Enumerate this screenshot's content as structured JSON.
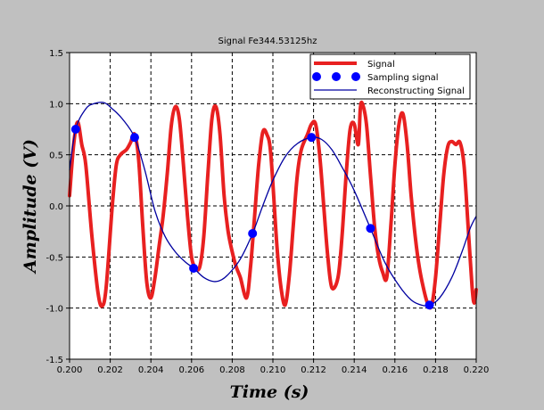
{
  "chart_data": {
    "type": "line",
    "title": "Signal Fe344.53125hz",
    "xlabel": "Time (s)",
    "ylabel": "Amplitude (V)",
    "xlim": [
      0.2,
      0.22
    ],
    "ylim": [
      -1.5,
      1.5
    ],
    "x_ticks": [
      "0.200",
      "0.202",
      "0.204",
      "0.206",
      "0.208",
      "0.210",
      "0.212",
      "0.214",
      "0.216",
      "0.218",
      "0.220"
    ],
    "y_ticks": [
      "1.5",
      "1.0",
      "0.5",
      "0.0",
      "-0.5",
      "-1.0",
      "-1.5"
    ],
    "grid": true,
    "legend_position": "top-right",
    "series": [
      {
        "name": "Signal",
        "style": "thick-line",
        "color": "#e82020",
        "points": [
          [
            0.2,
            0.1
          ],
          [
            0.2002,
            0.6
          ],
          [
            0.2004,
            0.82
          ],
          [
            0.2006,
            0.6
          ],
          [
            0.2008,
            0.4
          ],
          [
            0.2011,
            -0.3
          ],
          [
            0.2014,
            -0.85
          ],
          [
            0.2016,
            -0.98
          ],
          [
            0.2018,
            -0.8
          ],
          [
            0.2021,
            0.0
          ],
          [
            0.2023,
            0.4
          ],
          [
            0.2025,
            0.5
          ],
          [
            0.2028,
            0.55
          ],
          [
            0.203,
            0.62
          ],
          [
            0.2032,
            0.7
          ],
          [
            0.2034,
            0.45
          ],
          [
            0.2036,
            -0.2
          ],
          [
            0.2038,
            -0.75
          ],
          [
            0.204,
            -0.9
          ],
          [
            0.2042,
            -0.7
          ],
          [
            0.2044,
            -0.4
          ],
          [
            0.2046,
            -0.1
          ],
          [
            0.2048,
            0.3
          ],
          [
            0.205,
            0.78
          ],
          [
            0.2052,
            0.97
          ],
          [
            0.2054,
            0.85
          ],
          [
            0.2056,
            0.4
          ],
          [
            0.2058,
            -0.1
          ],
          [
            0.206,
            -0.5
          ],
          [
            0.2062,
            -0.6
          ],
          [
            0.2064,
            -0.6
          ],
          [
            0.2066,
            -0.3
          ],
          [
            0.2068,
            0.3
          ],
          [
            0.207,
            0.85
          ],
          [
            0.2072,
            0.97
          ],
          [
            0.2074,
            0.7
          ],
          [
            0.2076,
            0.1
          ],
          [
            0.2078,
            -0.25
          ],
          [
            0.208,
            -0.45
          ],
          [
            0.2082,
            -0.6
          ],
          [
            0.2084,
            -0.7
          ],
          [
            0.2087,
            -0.9
          ],
          [
            0.2089,
            -0.6
          ],
          [
            0.2091,
            -0.1
          ],
          [
            0.2093,
            0.4
          ],
          [
            0.2095,
            0.72
          ],
          [
            0.2097,
            0.7
          ],
          [
            0.2099,
            0.5
          ],
          [
            0.2102,
            -0.4
          ],
          [
            0.2104,
            -0.8
          ],
          [
            0.2106,
            -0.97
          ],
          [
            0.2108,
            -0.7
          ],
          [
            0.211,
            -0.2
          ],
          [
            0.2112,
            0.3
          ],
          [
            0.2114,
            0.55
          ],
          [
            0.2117,
            0.7
          ],
          [
            0.2119,
            0.8
          ],
          [
            0.2121,
            0.8
          ],
          [
            0.2123,
            0.5
          ],
          [
            0.2125,
            0.0
          ],
          [
            0.2127,
            -0.5
          ],
          [
            0.2129,
            -0.8
          ],
          [
            0.2132,
            -0.7
          ],
          [
            0.2134,
            -0.3
          ],
          [
            0.2136,
            0.3
          ],
          [
            0.2138,
            0.75
          ],
          [
            0.214,
            0.8
          ],
          [
            0.2142,
            0.6
          ],
          [
            0.2143,
            0.95
          ],
          [
            0.2144,
            1.0
          ],
          [
            0.2146,
            0.8
          ],
          [
            0.2148,
            0.3
          ],
          [
            0.215,
            -0.2
          ],
          [
            0.2152,
            -0.5
          ],
          [
            0.2154,
            -0.65
          ],
          [
            0.2156,
            -0.7
          ],
          [
            0.2158,
            -0.2
          ],
          [
            0.216,
            0.4
          ],
          [
            0.2162,
            0.8
          ],
          [
            0.2164,
            0.9
          ],
          [
            0.2166,
            0.6
          ],
          [
            0.2168,
            0.1
          ],
          [
            0.217,
            -0.3
          ],
          [
            0.2172,
            -0.6
          ],
          [
            0.2174,
            -0.8
          ],
          [
            0.2176,
            -0.95
          ],
          [
            0.2178,
            -0.98
          ],
          [
            0.218,
            -0.7
          ],
          [
            0.2182,
            -0.2
          ],
          [
            0.2184,
            0.3
          ],
          [
            0.2186,
            0.58
          ],
          [
            0.2188,
            0.63
          ],
          [
            0.219,
            0.6
          ],
          [
            0.2192,
            0.62
          ],
          [
            0.2194,
            0.4
          ],
          [
            0.2196,
            -0.2
          ],
          [
            0.2198,
            -0.8
          ],
          [
            0.2199,
            -0.95
          ],
          [
            0.22,
            -0.82
          ]
        ]
      },
      {
        "name": "Sampling signal",
        "style": "markers",
        "color": "#0000ff",
        "points": [
          [
            0.2003,
            0.75
          ],
          [
            0.2032,
            0.67
          ],
          [
            0.2061,
            -0.61
          ],
          [
            0.209,
            -0.27
          ],
          [
            0.2119,
            0.67
          ],
          [
            0.2148,
            -0.22
          ],
          [
            0.2177,
            -0.97
          ]
        ]
      },
      {
        "name": "Reconstructing Signal",
        "style": "thin-line",
        "color": "#0000a0",
        "points": [
          [
            0.2,
            0.35
          ],
          [
            0.2003,
            0.75
          ],
          [
            0.2008,
            0.95
          ],
          [
            0.2012,
            1.0
          ],
          [
            0.2017,
            1.01
          ],
          [
            0.2021,
            0.95
          ],
          [
            0.2026,
            0.85
          ],
          [
            0.2032,
            0.67
          ],
          [
            0.2037,
            0.35
          ],
          [
            0.2042,
            -0.05
          ],
          [
            0.2047,
            -0.3
          ],
          [
            0.2052,
            -0.45
          ],
          [
            0.2057,
            -0.55
          ],
          [
            0.2061,
            -0.61
          ],
          [
            0.2066,
            -0.7
          ],
          [
            0.2071,
            -0.74
          ],
          [
            0.2075,
            -0.72
          ],
          [
            0.2079,
            -0.65
          ],
          [
            0.2084,
            -0.52
          ],
          [
            0.209,
            -0.27
          ],
          [
            0.2095,
            0.0
          ],
          [
            0.21,
            0.25
          ],
          [
            0.2106,
            0.48
          ],
          [
            0.2112,
            0.61
          ],
          [
            0.2119,
            0.67
          ],
          [
            0.2124,
            0.65
          ],
          [
            0.2129,
            0.55
          ],
          [
            0.2134,
            0.38
          ],
          [
            0.214,
            0.15
          ],
          [
            0.2148,
            -0.22
          ],
          [
            0.2155,
            -0.55
          ],
          [
            0.2162,
            -0.78
          ],
          [
            0.2168,
            -0.92
          ],
          [
            0.2173,
            -0.97
          ],
          [
            0.2177,
            -0.97
          ],
          [
            0.2182,
            -0.9
          ],
          [
            0.2188,
            -0.7
          ],
          [
            0.2193,
            -0.45
          ],
          [
            0.2197,
            -0.22
          ],
          [
            0.22,
            -0.1
          ]
        ]
      }
    ]
  }
}
